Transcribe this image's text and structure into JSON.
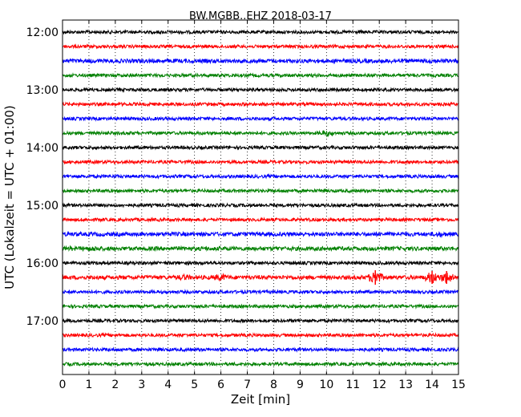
{
  "chart_data": {
    "type": "line",
    "title": "BW.MGBB..EHZ 2018-03-17",
    "xlabel": "Zeit  [min]",
    "ylabel": "UTC (Lokalzeit = UTC + 01:00)",
    "xlim": [
      0,
      15
    ],
    "x_ticks": [
      "0",
      "1",
      "2",
      "3",
      "4",
      "5",
      "6",
      "7",
      "8",
      "9",
      "10",
      "11",
      "12",
      "13",
      "14",
      "15"
    ],
    "y_ticks": [
      "12:00",
      "13:00",
      "14:00",
      "15:00",
      "16:00",
      "17:00"
    ],
    "grid": "vertical dotted at each minute",
    "series_colors": [
      "#000000",
      "#ff0000",
      "#0000ff",
      "#008000"
    ],
    "traces": [
      {
        "start": "12:00",
        "color": "#000000",
        "amplitude": 2,
        "events": []
      },
      {
        "start": "12:15",
        "color": "#ff0000",
        "amplitude": 2,
        "events": []
      },
      {
        "start": "12:30",
        "color": "#0000ff",
        "amplitude": 2.5,
        "events": [
          {
            "min": 14.0,
            "amp": 3
          },
          {
            "min": 12.5,
            "amp": 3
          }
        ]
      },
      {
        "start": "12:45",
        "color": "#008000",
        "amplitude": 2,
        "events": []
      },
      {
        "start": "13:00",
        "color": "#000000",
        "amplitude": 2,
        "events": []
      },
      {
        "start": "13:15",
        "color": "#ff0000",
        "amplitude": 2,
        "events": []
      },
      {
        "start": "13:30",
        "color": "#0000ff",
        "amplitude": 2,
        "events": []
      },
      {
        "start": "13:45",
        "color": "#008000",
        "amplitude": 2,
        "events": [
          {
            "min": 10.0,
            "amp": 4
          }
        ]
      },
      {
        "start": "14:00",
        "color": "#000000",
        "amplitude": 2,
        "events": []
      },
      {
        "start": "14:15",
        "color": "#ff0000",
        "amplitude": 2,
        "events": []
      },
      {
        "start": "14:30",
        "color": "#0000ff",
        "amplitude": 2,
        "events": []
      },
      {
        "start": "14:45",
        "color": "#008000",
        "amplitude": 2,
        "events": []
      },
      {
        "start": "15:00",
        "color": "#000000",
        "amplitude": 2,
        "events": []
      },
      {
        "start": "15:15",
        "color": "#ff0000",
        "amplitude": 2,
        "events": []
      },
      {
        "start": "15:30",
        "color": "#0000ff",
        "amplitude": 2.5,
        "events": [
          {
            "min": 14.3,
            "amp": 3.5
          },
          {
            "min": 12.8,
            "amp": 3
          }
        ]
      },
      {
        "start": "15:45",
        "color": "#008000",
        "amplitude": 2.5,
        "events": [
          {
            "min": 1.2,
            "amp": 3.5
          },
          {
            "min": 0.3,
            "amp": 3
          }
        ]
      },
      {
        "start": "16:00",
        "color": "#000000",
        "amplitude": 2,
        "events": []
      },
      {
        "start": "16:15",
        "color": "#ff0000",
        "amplitude": 2.5,
        "events": [
          {
            "min": 4.6,
            "amp": 4
          },
          {
            "min": 6.0,
            "amp": 5
          },
          {
            "min": 11.85,
            "amp": 9
          },
          {
            "min": 14.0,
            "amp": 8
          },
          {
            "min": 14.55,
            "amp": 8
          }
        ]
      },
      {
        "start": "16:30",
        "color": "#0000ff",
        "amplitude": 2,
        "events": []
      },
      {
        "start": "16:45",
        "color": "#008000",
        "amplitude": 2,
        "events": []
      },
      {
        "start": "17:00",
        "color": "#000000",
        "amplitude": 2,
        "events": []
      },
      {
        "start": "17:15",
        "color": "#ff0000",
        "amplitude": 2,
        "events": []
      },
      {
        "start": "17:30",
        "color": "#0000ff",
        "amplitude": 2,
        "events": []
      },
      {
        "start": "17:45",
        "color": "#008000",
        "amplitude": 2,
        "events": []
      }
    ]
  }
}
